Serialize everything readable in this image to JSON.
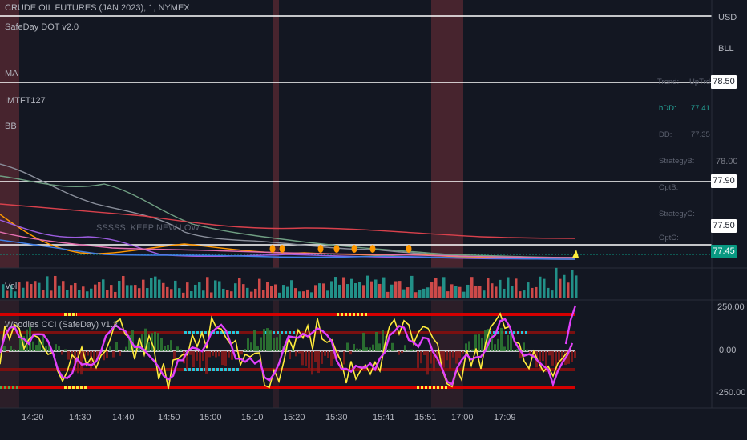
{
  "header": {
    "symbol": "CRUDE OIL FUTURES (JAN 2023), 1, NYMEX",
    "indicators": [
      "SafeDay DOT v2.0",
      "MA",
      "IMTFT127",
      "BB"
    ],
    "volume_label": "Vol",
    "cci_label": "Woodies CCI (SafeDay) v1.2"
  },
  "price_axis": {
    "currency": "USD",
    "unit": "BLL",
    "ticks": [
      "78.00"
    ],
    "tags": [
      "78.50",
      "77.90",
      "77.50",
      "77.45"
    ]
  },
  "cci_axis": {
    "ticks": [
      "250.00",
      "0.00",
      "-250.00"
    ]
  },
  "time_axis": {
    "ticks": [
      "14:20",
      "14:30",
      "14:40",
      "14:50",
      "15:00",
      "15:10",
      "15:20",
      "15:30",
      "15:41",
      "15:51",
      "17:00",
      "17:09"
    ]
  },
  "info_table": {
    "rows": [
      {
        "label": "Trend:",
        "value": "UpTrd"
      },
      {
        "label": "hDD:",
        "value": "77.41"
      },
      {
        "label": "DD:",
        "value": "77.35"
      },
      {
        "label": "StrategyB:",
        "value": ""
      },
      {
        "label": "OptB:",
        "value": ""
      },
      {
        "label": "StrategyC:",
        "value": ""
      },
      {
        "label": "OptC:",
        "value": ""
      }
    ]
  },
  "watermark": {
    "text": "SSSSS: KEEP NEW LOW"
  },
  "colors": {
    "background": "#131722",
    "session_band": "#5a2a33",
    "volume_up": "#26a69a",
    "volume_down": "#ef5350",
    "cci_line": "#e040fb",
    "cci_fast": "#ffeb3b",
    "price_tag_green": "#089981"
  }
}
